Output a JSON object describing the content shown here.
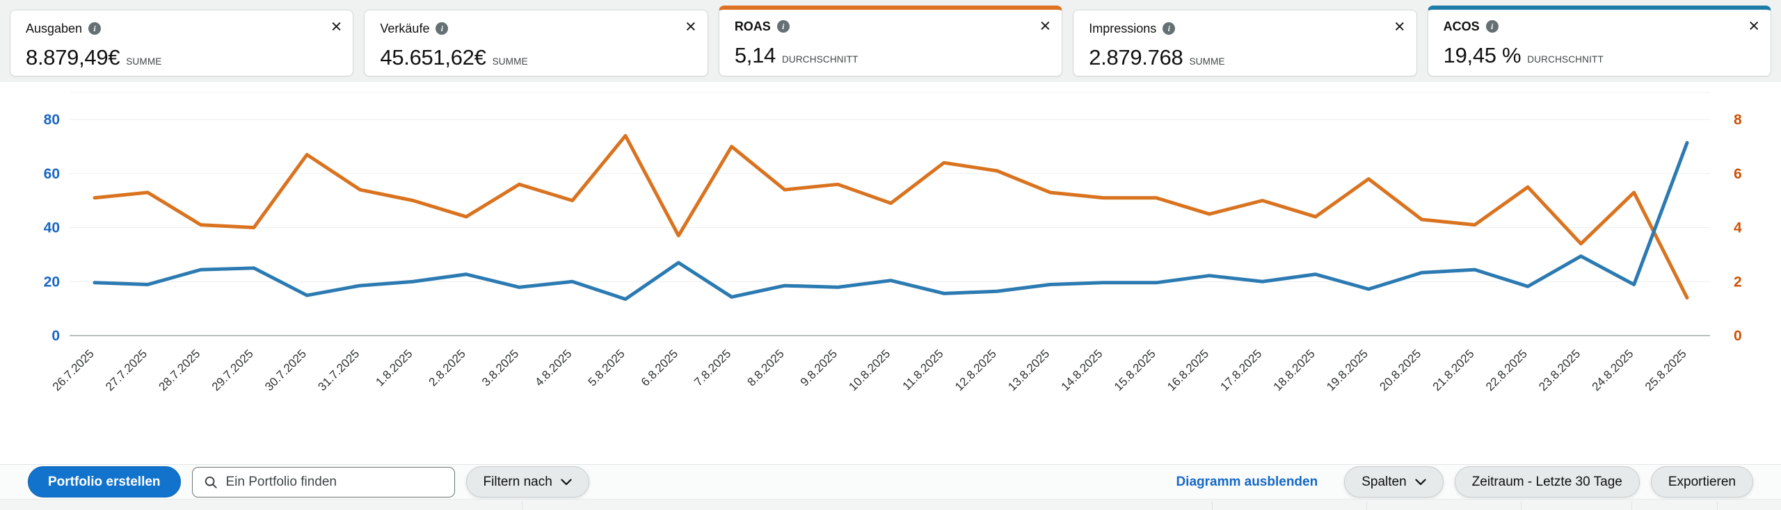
{
  "icons": {
    "close": "×",
    "info": "i"
  },
  "metric_cards": [
    {
      "title": "Ausgaben",
      "value": "8.879,49€",
      "value_label": "SUMME",
      "selected": false,
      "accent": ""
    },
    {
      "title": "Verkäufe",
      "value": "45.651,62€",
      "value_label": "SUMME",
      "selected": false,
      "accent": ""
    },
    {
      "title": "ROAS",
      "value": "5,14",
      "value_label": "DURCHSCHNITT",
      "selected": true,
      "accent": "#de7121"
    },
    {
      "title": "Impressions",
      "value": "2.879.768",
      "value_label": "SUMME",
      "selected": false,
      "accent": ""
    },
    {
      "title": "ACOS",
      "value": "19,45 %",
      "value_label": "DURCHSCHNITT",
      "selected": true,
      "accent": "#1e7ca8"
    }
  ],
  "chart_data": {
    "type": "line",
    "x": [
      "26.7.2025",
      "27.7.2025",
      "28.7.2025",
      "29.7.2025",
      "30.7.2025",
      "31.7.2025",
      "1.8.2025",
      "2.8.2025",
      "3.8.2025",
      "4.8.2025",
      "5.8.2025",
      "6.8.2025",
      "7.8.2025",
      "8.8.2025",
      "9.8.2025",
      "10.8.2025",
      "11.8.2025",
      "12.8.2025",
      "13.8.2025",
      "14.8.2025",
      "15.8.2025",
      "16.8.2025",
      "17.8.2025",
      "18.8.2025",
      "19.8.2025",
      "20.8.2025",
      "21.8.2025",
      "22.8.2025",
      "23.8.2025",
      "24.8.2025",
      "25.8.2025"
    ],
    "series": [
      {
        "name": "ROAS",
        "axis": "right",
        "color": "#d9731f",
        "values": [
          5.1,
          5.3,
          4.1,
          4.0,
          6.7,
          5.4,
          5.0,
          4.4,
          5.6,
          5.0,
          7.4,
          3.7,
          7.0,
          5.4,
          5.6,
          4.9,
          6.4,
          6.1,
          5.3,
          5.1,
          5.1,
          4.5,
          5.0,
          4.4,
          5.8,
          4.3,
          4.1,
          5.5,
          3.4,
          5.3,
          1.4
        ]
      },
      {
        "name": "ACOS",
        "axis": "left",
        "color": "#2b7ab1",
        "values": [
          19.6,
          18.9,
          24.4,
          25.0,
          14.9,
          18.5,
          20.0,
          22.7,
          17.9,
          20.0,
          13.5,
          27.0,
          14.3,
          18.5,
          17.9,
          20.4,
          15.6,
          16.4,
          18.9,
          19.6,
          19.6,
          22.2,
          20.0,
          22.7,
          17.2,
          23.3,
          24.4,
          18.2,
          29.4,
          18.9,
          71.4
        ]
      }
    ],
    "left_axis": {
      "ticks": [
        0,
        20,
        40,
        60,
        80
      ],
      "max": 90,
      "label_color": "#1a66c2"
    },
    "right_axis": {
      "ticks": [
        0,
        2,
        4,
        6,
        8
      ],
      "max": 9,
      "label_color": "#cc5205"
    },
    "grid": true,
    "legend_position": "none",
    "x_tick_color": "#2f3333"
  },
  "toolbar": {
    "create_portfolio_button": "Portfolio erstellen",
    "search_placeholder": "Ein Portfolio finden",
    "filter_button": "Filtern nach",
    "hide_chart_link": "Diagramm ausblenden",
    "columns_button": "Spalten",
    "date_range_button": "Zeitraum - Letzte 30 Tage",
    "export_button": "Exportieren"
  }
}
